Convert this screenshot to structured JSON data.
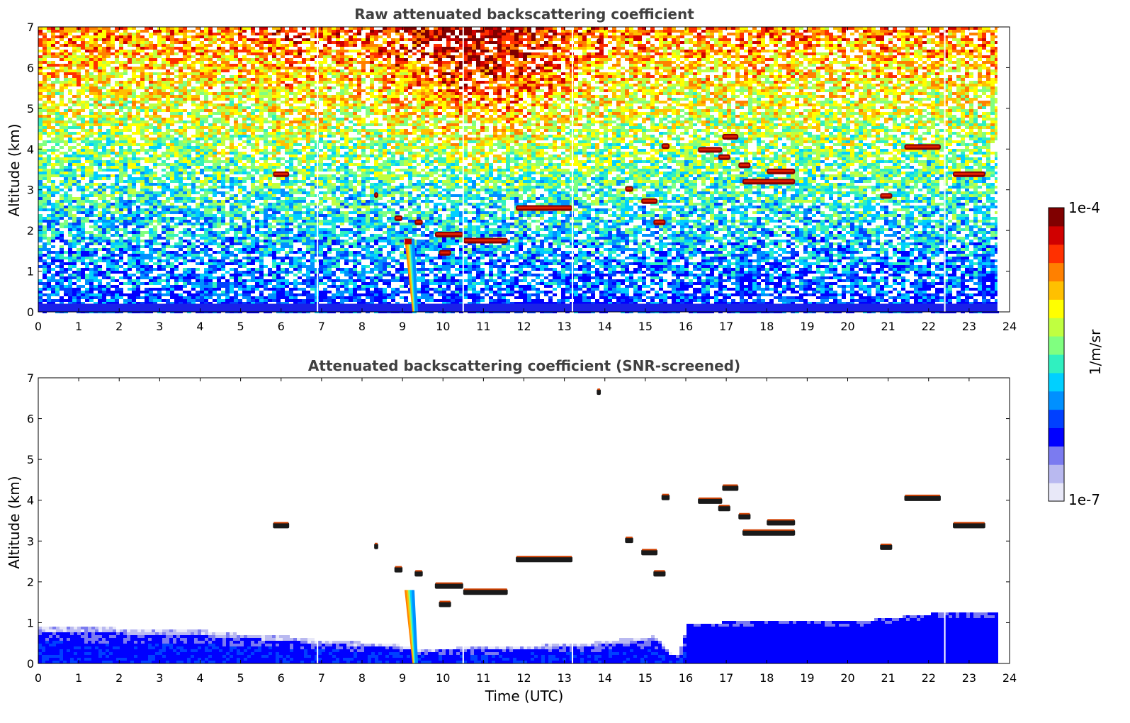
{
  "chart_data": [
    {
      "type": "heatmap",
      "title": "Raw attenuated backscattering coefficient",
      "xlabel": "",
      "ylabel": "Altitude (km)",
      "xlim": [
        0,
        24
      ],
      "ylim": [
        0,
        7
      ],
      "x_ticks": [
        "0",
        "1",
        "2",
        "3",
        "4",
        "5",
        "6",
        "7",
        "8",
        "9",
        "10",
        "11",
        "12",
        "13",
        "14",
        "15",
        "16",
        "17",
        "18",
        "19",
        "20",
        "21",
        "22",
        "23",
        "24"
      ],
      "y_ticks": [
        "0",
        "1",
        "2",
        "3",
        "4",
        "5",
        "6",
        "7"
      ],
      "data_end_time": 23.7,
      "gaps": [
        6.9,
        10.5,
        13.2,
        22.4
      ],
      "boundary_layer_top": 0.5,
      "noise_gradient": "blue near ground to yellow/red aloft",
      "precipitation": {
        "x0": 9.05,
        "x1": 9.35,
        "top": 1.8
      },
      "cloud_layers": [
        {
          "x0": 5.8,
          "x1": 6.2,
          "y": 3.38
        },
        {
          "x0": 8.3,
          "x1": 8.4,
          "y": 2.87
        },
        {
          "x0": 8.8,
          "x1": 9.0,
          "y": 2.3
        },
        {
          "x0": 9.3,
          "x1": 9.5,
          "y": 2.2
        },
        {
          "x0": 9.8,
          "x1": 10.5,
          "y": 1.9
        },
        {
          "x0": 9.9,
          "x1": 10.2,
          "y": 1.45
        },
        {
          "x0": 10.5,
          "x1": 11.6,
          "y": 1.75
        },
        {
          "x0": 11.8,
          "x1": 13.2,
          "y": 2.55
        },
        {
          "x0": 14.5,
          "x1": 14.7,
          "y": 3.02
        },
        {
          "x0": 14.9,
          "x1": 15.3,
          "y": 2.72
        },
        {
          "x0": 15.2,
          "x1": 15.5,
          "y": 2.2
        },
        {
          "x0": 15.4,
          "x1": 15.6,
          "y": 4.07
        },
        {
          "x0": 16.3,
          "x1": 16.9,
          "y": 3.98
        },
        {
          "x0": 16.9,
          "x1": 17.3,
          "y": 4.3
        },
        {
          "x0": 16.8,
          "x1": 17.1,
          "y": 3.8
        },
        {
          "x0": 17.3,
          "x1": 17.6,
          "y": 3.6
        },
        {
          "x0": 17.4,
          "x1": 18.7,
          "y": 3.2
        },
        {
          "x0": 18.0,
          "x1": 18.7,
          "y": 3.45
        },
        {
          "x0": 20.8,
          "x1": 21.1,
          "y": 2.85
        },
        {
          "x0": 21.4,
          "x1": 22.3,
          "y": 4.05
        },
        {
          "x0": 22.6,
          "x1": 23.4,
          "y": 3.38
        },
        {
          "x0": 13.8,
          "x1": 13.9,
          "y": 6.65
        }
      ]
    },
    {
      "type": "heatmap",
      "title": "Attenuated backscattering coefficient (SNR-screened)",
      "xlabel": "Time (UTC)",
      "ylabel": "Altitude (km)",
      "xlim": [
        0,
        24
      ],
      "ylim": [
        0,
        7
      ],
      "x_ticks": [
        "0",
        "1",
        "2",
        "3",
        "4",
        "5",
        "6",
        "7",
        "8",
        "9",
        "10",
        "11",
        "12",
        "13",
        "14",
        "15",
        "16",
        "17",
        "18",
        "19",
        "20",
        "21",
        "22",
        "23",
        "24"
      ],
      "y_ticks": [
        "0",
        "1",
        "2",
        "3",
        "4",
        "5",
        "6",
        "7"
      ],
      "boundary_layer_top_profile": {
        "x": [
          0,
          2,
          4,
          5,
          6,
          7,
          8,
          8.8,
          9.4,
          10.5,
          12,
          13.2,
          14.5,
          15.2,
          15.6,
          15.7,
          15.8,
          16,
          17,
          18,
          19,
          20,
          21,
          22,
          23,
          23.7
        ],
        "y": [
          0.95,
          0.9,
          0.85,
          0.75,
          0.72,
          0.6,
          0.55,
          0.5,
          0.4,
          0.42,
          0.48,
          0.5,
          0.65,
          0.7,
          0.3,
          0.25,
          0.3,
          1.0,
          1.05,
          1.1,
          1.1,
          1.05,
          1.15,
          1.25,
          1.3,
          1.3
        ]
      }
    }
  ],
  "colorbar": {
    "min_label": "1e-7",
    "max_label": "1e-4",
    "unit": "1/m/sr",
    "colormap": [
      "#e8e8f8",
      "#b9b9f0",
      "#7b7bf0",
      "#0000ff",
      "#0040ff",
      "#0090ff",
      "#00d0ff",
      "#30f0c0",
      "#80ff80",
      "#c0ff40",
      "#ffff00",
      "#ffc000",
      "#ff8000",
      "#ff3000",
      "#d00000",
      "#800000"
    ]
  }
}
